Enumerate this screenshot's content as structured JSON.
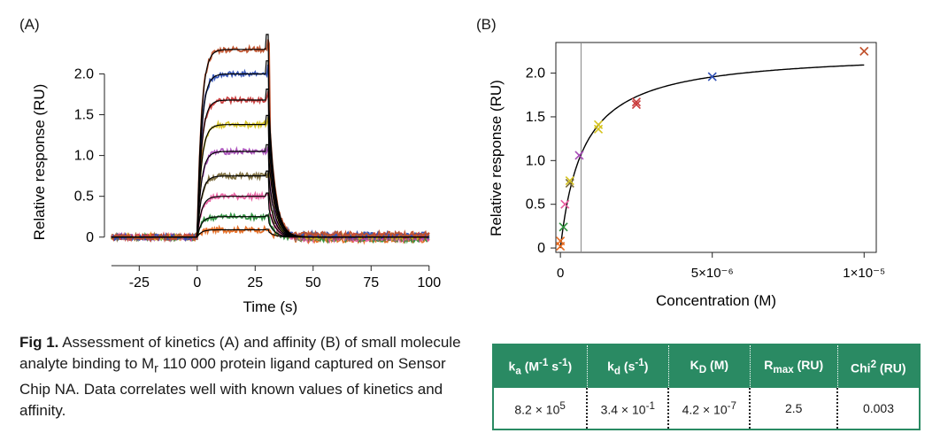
{
  "panels": {
    "a_label": "(A)",
    "b_label": "(B)"
  },
  "chart_data": [
    {
      "type": "line",
      "panel": "(A)",
      "xlabel": "Time (s)",
      "ylabel": "Relative response (RU)",
      "xlim": [
        -40,
        102
      ],
      "ylim": [
        -0.35,
        2.45
      ],
      "xticks": [
        "-25",
        "0",
        "25",
        "50",
        "75",
        "100"
      ],
      "yticks": [
        "0",
        "0.5",
        "1.0",
        "1.5",
        "2.0"
      ],
      "association_start": 0,
      "dissociation_start": 30,
      "series": [
        {
          "color": "#e66a1f",
          "plateau": 0.09
        },
        {
          "color": "#2c8f3c",
          "plateau": 0.25
        },
        {
          "color": "#e85c9f",
          "plateau": 0.5
        },
        {
          "color": "#7a6a3a",
          "plateau": 0.75
        },
        {
          "color": "#a84cb8",
          "plateau": 1.05
        },
        {
          "color": "#d6c31e",
          "plateau": 1.38
        },
        {
          "color": "#c93a3a",
          "plateau": 1.68
        },
        {
          "color": "#2f4fb5",
          "plateau": 2.0
        },
        {
          "color": "#c0502a",
          "plateau": 2.3
        }
      ],
      "fit_color": "#000000"
    },
    {
      "type": "scatter",
      "panel": "(B)",
      "xlabel": "Concentration (M)",
      "ylabel": "Relative response (RU)",
      "xlim": [
        -1.5e-07,
        1.04e-05
      ],
      "ylim": [
        -0.05,
        2.35
      ],
      "xticks": [
        {
          "v": 0,
          "t": "0"
        },
        {
          "v": 5e-06,
          "t": "5×10⁻⁶"
        },
        {
          "v": 1e-05,
          "t": "1×10⁻⁵"
        }
      ],
      "yticks": [
        "0",
        "0.5",
        "1.0",
        "1.5",
        "2.0"
      ],
      "KD_line": 6.8e-07,
      "fit": {
        "Rmax": 2.25,
        "KD": 7.5e-07
      },
      "points": [
        {
          "x": 0.0,
          "y": 0.02,
          "color": "#e66a1f"
        },
        {
          "x": 0.0,
          "y": 0.08,
          "color": "#e66a1f"
        },
        {
          "x": 1e-07,
          "y": 0.24,
          "color": "#2c8f3c"
        },
        {
          "x": 1.5e-07,
          "y": 0.5,
          "color": "#e85c9f"
        },
        {
          "x": 3.1e-07,
          "y": 0.74,
          "color": "#7a6a3a"
        },
        {
          "x": 3.1e-07,
          "y": 0.77,
          "color": "#d6c31e"
        },
        {
          "x": 6.2e-07,
          "y": 1.06,
          "color": "#a84cb8"
        },
        {
          "x": 1.25e-06,
          "y": 1.36,
          "color": "#d6c31e"
        },
        {
          "x": 1.25e-06,
          "y": 1.41,
          "color": "#d6c31e"
        },
        {
          "x": 2.5e-06,
          "y": 1.64,
          "color": "#c93a3a"
        },
        {
          "x": 2.5e-06,
          "y": 1.67,
          "color": "#c93a3a"
        },
        {
          "x": 5e-06,
          "y": 1.96,
          "color": "#2f4fb5"
        },
        {
          "x": 1e-05,
          "y": 2.25,
          "color": "#c0502a"
        }
      ]
    }
  ],
  "caption": {
    "label": "Fig 1.",
    "text_1": " Assessment of kinetics (A) and affinity (B) of small molecule analyte binding to M",
    "sub": "r",
    "text_2": " 110 000 protein ligand captured on Sensor Chip NA. Data correlates well with known values of kinetics and affinity."
  },
  "table": {
    "headers": [
      {
        "main": "k",
        "sub": "a",
        "rest": " (M",
        "sup1": "-1",
        "mid": " s",
        "sup2": "-1",
        "end": ")"
      },
      {
        "main": "k",
        "sub": "d",
        "rest": " (s",
        "sup1": "-1",
        "mid": "",
        "sup2": "",
        "end": ")"
      },
      {
        "main": "K",
        "sub": "D",
        "rest": " (M)",
        "sup1": "",
        "mid": "",
        "sup2": "",
        "end": ""
      },
      {
        "main": "R",
        "sub": "max",
        "rest": " (RU)",
        "sup1": "",
        "mid": "",
        "sup2": "",
        "end": ""
      },
      {
        "main": "Chi",
        "sub": "",
        "rest": "",
        "sup1": "2",
        "mid": " (RU)",
        "sup2": "",
        "end": ""
      }
    ],
    "values": [
      {
        "base": "8.2 × 10",
        "exp": "5"
      },
      {
        "base": "3.4 × 10",
        "exp": "-1"
      },
      {
        "base": "4.2 × 10",
        "exp": "-7"
      },
      {
        "base": "2.5",
        "exp": ""
      },
      {
        "base": "0.003",
        "exp": ""
      }
    ]
  }
}
